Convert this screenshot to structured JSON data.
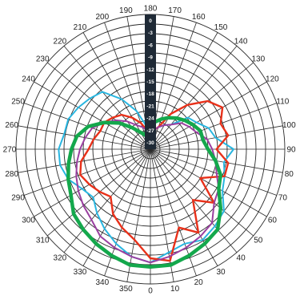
{
  "chart_data": {
    "type": "polar-line",
    "title": "",
    "angle_unit": "deg",
    "angle_labels": [
      0,
      10,
      20,
      30,
      40,
      50,
      60,
      70,
      80,
      90,
      100,
      110,
      120,
      130,
      140,
      150,
      160,
      170,
      180,
      190,
      200,
      210,
      220,
      230,
      240,
      250,
      260,
      270,
      280,
      290,
      300,
      310,
      320,
      330,
      340,
      350
    ],
    "radial_labels": [
      "0",
      "-3",
      "-6",
      "-9",
      "-12",
      "-15",
      "-18",
      "-21",
      "-24",
      "-27",
      "-30"
    ],
    "radial_range_db": [
      -30,
      0
    ],
    "grid": true,
    "series": [
      {
        "color": "#29b6e0",
        "points": [
          [
            0,
            -5
          ],
          [
            10,
            -7
          ],
          [
            20,
            -8
          ],
          [
            30,
            -7
          ],
          [
            40,
            -8
          ],
          [
            50,
            -9
          ],
          [
            60,
            -12
          ],
          [
            70,
            -13
          ],
          [
            80,
            -14
          ],
          [
            90,
            -12
          ],
          [
            100,
            -16
          ],
          [
            110,
            -17
          ],
          [
            120,
            -19
          ],
          [
            130,
            -20
          ],
          [
            140,
            -24
          ],
          [
            150,
            -25
          ],
          [
            160,
            -26
          ],
          [
            170,
            -27
          ],
          [
            180,
            -28
          ],
          [
            190,
            -26
          ],
          [
            200,
            -22
          ],
          [
            210,
            -18
          ],
          [
            220,
            -14
          ],
          [
            230,
            -13
          ],
          [
            240,
            -12
          ],
          [
            250,
            -11
          ],
          [
            260,
            -11
          ],
          [
            270,
            -10
          ],
          [
            280,
            -10
          ],
          [
            290,
            -11
          ],
          [
            300,
            -13
          ],
          [
            310,
            -14
          ],
          [
            320,
            -12
          ],
          [
            330,
            -10
          ],
          [
            340,
            -8
          ],
          [
            350,
            -6
          ]
        ]
      },
      {
        "color": "#e8311a",
        "points": [
          [
            0,
            -6
          ],
          [
            10,
            -5
          ],
          [
            20,
            -12
          ],
          [
            30,
            -9
          ],
          [
            40,
            -16
          ],
          [
            50,
            -12
          ],
          [
            60,
            -18
          ],
          [
            70,
            -13
          ],
          [
            80,
            -13
          ],
          [
            90,
            -16
          ],
          [
            100,
            -13
          ],
          [
            110,
            -14
          ],
          [
            120,
            -12
          ],
          [
            130,
            -14
          ],
          [
            140,
            -18
          ],
          [
            150,
            -22
          ],
          [
            160,
            -26
          ],
          [
            170,
            -27
          ],
          [
            180,
            -28
          ],
          [
            190,
            -27
          ],
          [
            200,
            -25
          ],
          [
            210,
            -23
          ],
          [
            220,
            -21
          ],
          [
            230,
            -20
          ],
          [
            240,
            -19
          ],
          [
            250,
            -19
          ],
          [
            260,
            -18
          ],
          [
            270,
            -17
          ],
          [
            280,
            -15
          ],
          [
            290,
            -14
          ],
          [
            300,
            -15
          ],
          [
            310,
            -16
          ],
          [
            320,
            -17
          ],
          [
            330,
            -14
          ],
          [
            340,
            -12
          ],
          [
            350,
            -10
          ]
        ]
      },
      {
        "color": "#9a3fa0",
        "points": [
          [
            0,
            -5
          ],
          [
            10,
            -6
          ],
          [
            20,
            -7
          ],
          [
            30,
            -8
          ],
          [
            40,
            -9
          ],
          [
            50,
            -12
          ],
          [
            60,
            -13
          ],
          [
            70,
            -15
          ],
          [
            80,
            -16
          ],
          [
            90,
            -17
          ],
          [
            100,
            -18
          ],
          [
            110,
            -20
          ],
          [
            120,
            -21
          ],
          [
            130,
            -22
          ],
          [
            140,
            -24
          ],
          [
            150,
            -25
          ],
          [
            160,
            -26
          ],
          [
            170,
            -27
          ],
          [
            180,
            -28
          ],
          [
            190,
            -27
          ],
          [
            200,
            -26
          ],
          [
            210,
            -25
          ],
          [
            220,
            -23
          ],
          [
            230,
            -21
          ],
          [
            240,
            -19
          ],
          [
            250,
            -17
          ],
          [
            260,
            -16
          ],
          [
            270,
            -15
          ],
          [
            280,
            -14
          ],
          [
            290,
            -13
          ],
          [
            300,
            -12
          ],
          [
            310,
            -11
          ],
          [
            320,
            -10
          ],
          [
            330,
            -8
          ],
          [
            340,
            -7
          ],
          [
            350,
            -6
          ]
        ]
      },
      {
        "color": "#14a84c",
        "points": [
          [
            0,
            -4
          ],
          [
            10,
            -4
          ],
          [
            20,
            -5
          ],
          [
            30,
            -6
          ],
          [
            40,
            -7
          ],
          [
            50,
            -10
          ],
          [
            60,
            -13
          ],
          [
            70,
            -14
          ],
          [
            80,
            -16
          ],
          [
            90,
            -18
          ],
          [
            100,
            -19
          ],
          [
            110,
            -19
          ],
          [
            120,
            -20
          ],
          [
            130,
            -21
          ],
          [
            140,
            -22
          ],
          [
            150,
            -23
          ],
          [
            160,
            -24
          ],
          [
            170,
            -25
          ],
          [
            180,
            -26
          ],
          [
            190,
            -27
          ],
          [
            200,
            -28
          ],
          [
            210,
            -27
          ],
          [
            220,
            -25
          ],
          [
            230,
            -22
          ],
          [
            240,
            -19
          ],
          [
            250,
            -16
          ],
          [
            260,
            -14
          ],
          [
            270,
            -13
          ],
          [
            280,
            -12
          ],
          [
            290,
            -11
          ],
          [
            300,
            -10
          ],
          [
            310,
            -8
          ],
          [
            320,
            -7
          ],
          [
            330,
            -6
          ],
          [
            340,
            -5
          ],
          [
            350,
            -4
          ]
        ]
      }
    ]
  }
}
